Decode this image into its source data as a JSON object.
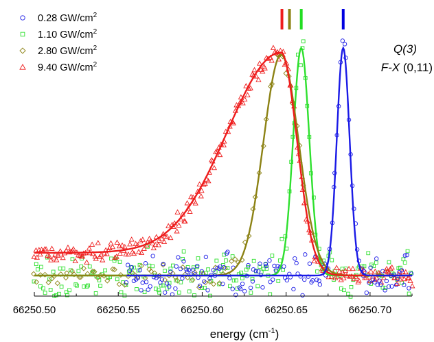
{
  "chart_data": {
    "type": "scatter",
    "xlabel": "energy (cm",
    "xlabel_sup": "-1",
    "xlabel_suffix": ")",
    "ylabel": "",
    "xlim": [
      66250.5,
      66250.725
    ],
    "ylim": [
      -0.1,
      1.12
    ],
    "xticks": [
      66250.5,
      66250.55,
      66250.6,
      66250.65,
      66250.7
    ],
    "xtick_labels": [
      "66250.50",
      "66250.55",
      "66250.60",
      "66250.65",
      "66250.70"
    ],
    "grid": false,
    "legend_position": "top-left",
    "annotation": {
      "line1": "Q(3)",
      "line2_italic": "F-X",
      "line2_rest": " (0,11)"
    },
    "series": [
      {
        "name": "0.28 GW/cm",
        "name_sup": "2",
        "marker": "circle",
        "color": "#1a1ae6",
        "fit": {
          "center": 66250.684,
          "sigma": 0.0038,
          "amplitude": 1.0,
          "baseline": 0.0,
          "shape": "gauss",
          "x_start": 66250.555
        },
        "noise": {
          "x_start": 66250.555,
          "x_end": 66250.725,
          "step": 0.0011,
          "spread": 0.08,
          "seed": 11
        },
        "peak_marker_x": 66250.684,
        "peak_marker_color": "#0000e0"
      },
      {
        "name": "1.10 GW/cm",
        "name_sup": "2",
        "marker": "square",
        "color": "#2ee02e",
        "fit": {
          "center": 66250.659,
          "sigma": 0.0048,
          "amplitude": 1.0,
          "baseline": 0.0,
          "shape": "gauss",
          "x_start": 66250.5
        },
        "noise": {
          "x_start": 66250.5,
          "x_end": 66250.725,
          "step": 0.0011,
          "spread": 0.09,
          "seed": 23
        },
        "peak_marker_x": 66250.659,
        "peak_marker_color": "#22dd22"
      },
      {
        "name": "2.80 GW/cm",
        "name_sup": "2",
        "marker": "diamond",
        "color": "#8c8214",
        "fit": {
          "center": 66250.647,
          "sigma": 0.0105,
          "amplitude": 0.97,
          "baseline": 0.0,
          "shape": "gauss",
          "x_start": 66250.5
        },
        "noise": {
          "x_start": 66250.5,
          "x_end": 66250.66,
          "step": 0.002,
          "spread": 0.04,
          "seed": 37
        },
        "peak_marker_x": 66250.652,
        "peak_marker_color": "#8c8214"
      },
      {
        "name": "9.40 GW/cm",
        "name_sup": "2",
        "marker": "triangle",
        "color": "#ee1c1c",
        "fit": {
          "center": 66250.647,
          "sigma_left": 0.032,
          "sigma_right": 0.0095,
          "amplitude": 0.88,
          "baseline": 0.1,
          "shape": "asym",
          "x_start": 66250.5
        },
        "noise": {
          "x_start": 66250.5,
          "x_end": 66250.725,
          "step": 0.0009,
          "spread": 0.035,
          "seed": 53
        },
        "peak_marker_x": 66250.6475,
        "peak_marker_color": "#ee1c1c"
      }
    ]
  }
}
